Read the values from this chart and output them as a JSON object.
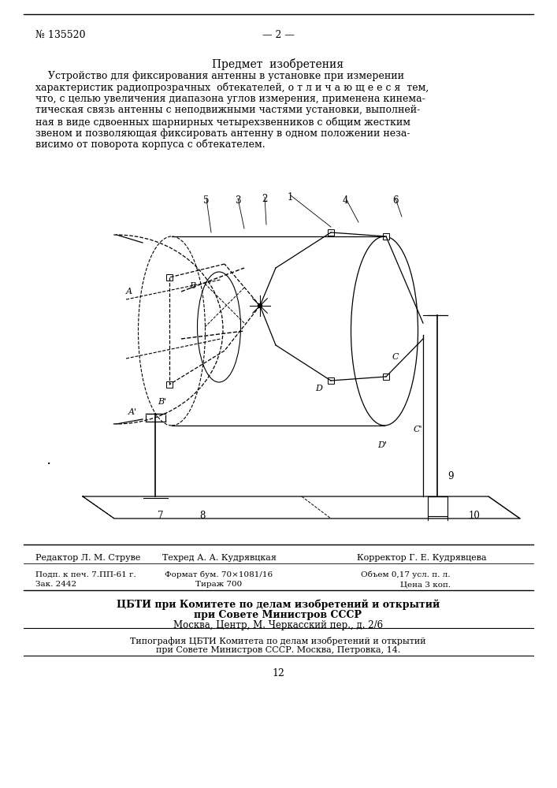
{
  "page_number_left": "№ 135520",
  "page_number_center": "— 2 —",
  "section_title": "Предмет  изобретения",
  "main_text_lines": [
    "    Устройство для фиксирования антенны в установке при измерении",
    "характеристик радиопрозрачных  обтекателей, о т л и ч а ю щ е е с я  тем,",
    "что, с целью увеличения диапазона углов измерения, применена кинема-",
    "тическая связь антенны с неподвижными частями установки, выполней-",
    "ная в виде сдвоенных шарнирных четырехзвенников с общим жестким",
    "звеном и позволяющая фиксировать антенну в одном положении неза-",
    "висимо от поворота корпуса с обтекателем."
  ],
  "footer_line1_left": "Редактор Л. М. Струве",
  "footer_line1_center": "Техред А. А. Кудрявцкая",
  "footer_line1_right": "Корректор Г. Е. Кудрявцева",
  "footer_line2_left": "Подп. к печ. 7.ПП-61 г.",
  "footer_line2_center": "Формат бум. 70×1081/16",
  "footer_line2_right": "Объем 0,17 усл. п. л.",
  "footer_line3_left": "Зак. 2442",
  "footer_line3_center": "Тираж 700",
  "footer_line3_right": "Цена 3 коп.",
  "footer_org1": "ЦБТИ при Комитете по делам изобретений и открытий",
  "footer_org2": "при Совете Министров СССР",
  "footer_org3": "Москва, Центр, М. Черкасский пер., д. 2/6",
  "footer_print1": "Типография ЦБТИ Комитета по делам изобретений и открытий",
  "footer_print2": "при Совете Министров СССР. Москва, Петровка, 14.",
  "page_num_bottom": "12",
  "bg_color": "#ffffff",
  "text_color": "#000000"
}
